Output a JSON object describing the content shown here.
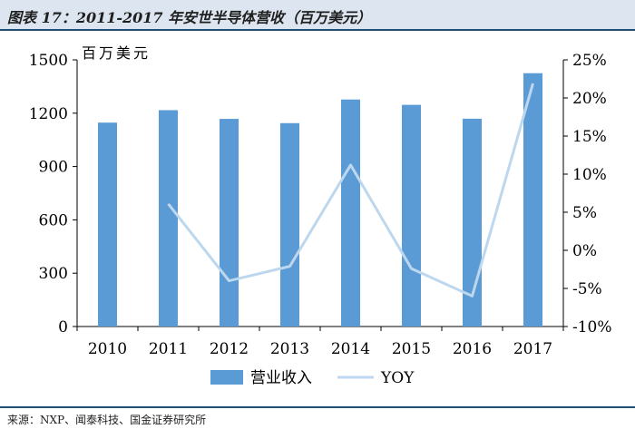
{
  "header": {
    "title": "图表 17：2011-2017 年安世半导体营收（百万美元）"
  },
  "footer": {
    "source": "来源：NXP、闻泰科技、国金证券研究所"
  },
  "colors": {
    "bar": "#5b9bd5",
    "line": "#bdd7ee",
    "title_bg": "#dde6f0",
    "rule": "#1f4e79"
  },
  "chart_data": {
    "type": "bar",
    "unit_label": "百万美元",
    "categories": [
      "2010",
      "2011",
      "2012",
      "2013",
      "2014",
      "2015",
      "2016",
      "2017"
    ],
    "series": [
      {
        "name": "营业收入",
        "type": "bar",
        "axis": "left",
        "values": [
          1147,
          1217,
          1168,
          1144,
          1277,
          1247,
          1169,
          1425
        ]
      },
      {
        "name": "YOY",
        "type": "line",
        "axis": "right",
        "values": [
          null,
          6.1,
          -4.0,
          -2.1,
          11.2,
          -2.4,
          -6.0,
          21.9
        ]
      }
    ],
    "y_left": {
      "min": 0,
      "max": 1500,
      "ticks": [
        "0",
        "300",
        "600",
        "900",
        "1200",
        "1500"
      ]
    },
    "y_right": {
      "min": -10,
      "max": 25,
      "ticks": [
        "-10%",
        "-5%",
        "0%",
        "5%",
        "10%",
        "15%",
        "20%",
        "25%"
      ]
    },
    "grid": false,
    "legend_position": "bottom"
  }
}
